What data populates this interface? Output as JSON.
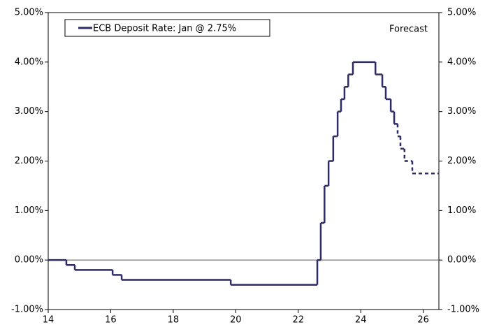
{
  "chart_data": {
    "type": "line",
    "step": "post",
    "legend_label": "ECB Deposit Rate: Jan @ 2.75%",
    "annotation": "Forecast",
    "series": [
      {
        "name": "ECB Deposit Rate: Jan @ 2.75%",
        "color": "#2e2a66",
        "style": "solid",
        "x": [
          14,
          14.58,
          14.85,
          16.06,
          16.35,
          19.84,
          22.61,
          22.72,
          22.84,
          22.97,
          23.12,
          23.26,
          23.37,
          23.48,
          23.6,
          23.75,
          24.47,
          24.69,
          24.8,
          24.96,
          25.07
        ],
        "values": [
          0,
          -0.1,
          -0.2,
          -0.3,
          -0.4,
          -0.5,
          0,
          0.75,
          1.5,
          2,
          2.5,
          3,
          3.25,
          3.5,
          3.75,
          4,
          3.75,
          3.5,
          3.25,
          3,
          2.75
        ]
      },
      {
        "color": "#2e2a66",
        "style": "dashed",
        "x": [
          25.07,
          25.18,
          25.27,
          25.4,
          25.65,
          26.5
        ],
        "values": [
          2.75,
          2.5,
          2.25,
          2,
          1.75,
          1.75
        ]
      }
    ],
    "xlim": [
      14,
      26.5
    ],
    "xticks": [
      14,
      16,
      18,
      20,
      22,
      24,
      26
    ],
    "ylim": [
      -1,
      5
    ],
    "yticks": [
      {
        "value": -1,
        "label": "-1.00%"
      },
      {
        "value": 0,
        "label": "0.00%"
      },
      {
        "value": 1,
        "label": "1.00%"
      },
      {
        "value": 2,
        "label": "2.00%"
      },
      {
        "value": 3,
        "label": "3.00%"
      },
      {
        "value": 4,
        "label": "4.00%"
      },
      {
        "value": 5,
        "label": "5.00%"
      }
    ],
    "y2lim": [
      -1,
      5
    ],
    "y2ticks": [
      {
        "value": -1,
        "label": "-1.00%"
      },
      {
        "value": 0,
        "label": "0.00%"
      },
      {
        "value": 1,
        "label": "1.00%"
      },
      {
        "value": 2,
        "label": "2.00%"
      },
      {
        "value": 3,
        "label": "3.00%"
      },
      {
        "value": 4,
        "label": "4.00%"
      },
      {
        "value": 5,
        "label": "5.00%"
      }
    ],
    "zero_line": true,
    "legend": "upper left"
  }
}
